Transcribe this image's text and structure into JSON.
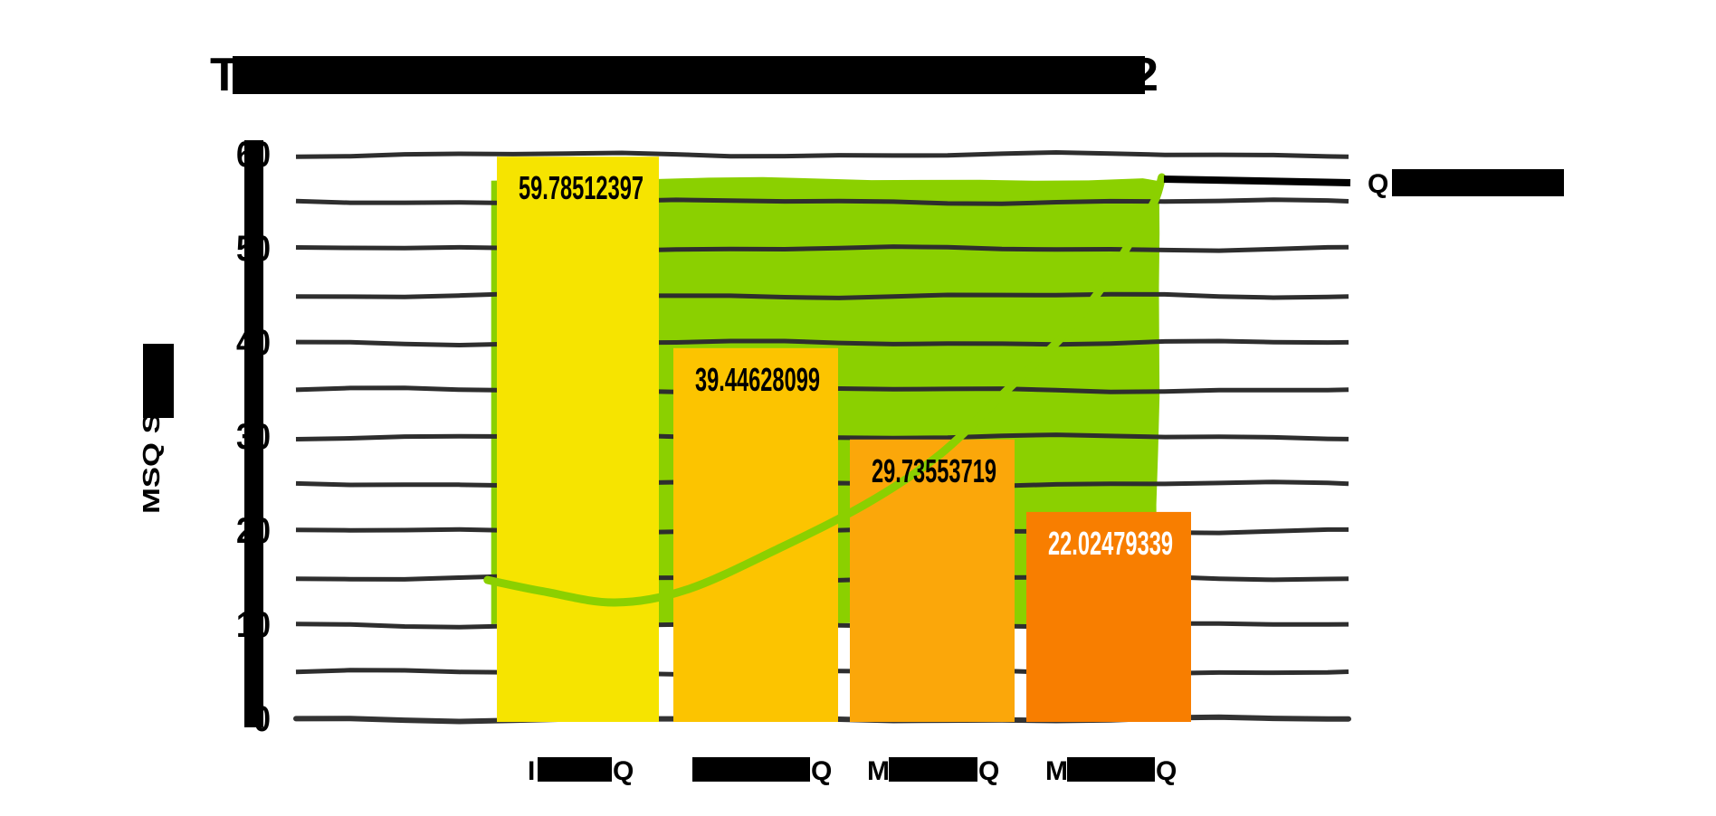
{
  "title": {
    "visible_prefix": "T",
    "visible_suffix": "2",
    "redacted": true
  },
  "y_axis": {
    "title_visible": "MSQ Score",
    "title_redacted": true,
    "tick_labels": [
      "60",
      "50",
      "40",
      "30",
      "20",
      "10",
      "0"
    ]
  },
  "x_axis": {
    "redacted": true,
    "categories": [
      {
        "visible_prefix": "I",
        "visible_suffix": "Q"
      },
      {
        "visible_prefix": "",
        "visible_suffix": "Q"
      },
      {
        "visible_prefix": "M",
        "visible_suffix": "Q"
      },
      {
        "visible_prefix": "M",
        "visible_suffix": "Q"
      }
    ]
  },
  "legend": {
    "visible_prefix": "Q",
    "redacted": true,
    "marker_color": "#000000"
  },
  "chart_data": {
    "type": "bar",
    "overlays": [
      "area",
      "line"
    ],
    "categories": [
      "I█Q",
      "█Q",
      "M█Q",
      "M█Q"
    ],
    "values": [
      59.78512397,
      39.44628099,
      29.73553719,
      22.02479339
    ],
    "value_labels": [
      "59.78512397",
      "39.44628099",
      "29.73553719",
      "22.02479339"
    ],
    "value_label_colors": [
      "#000000",
      "#000000",
      "#000000",
      "#ffffff"
    ],
    "bar_colors": [
      "#F6E400",
      "#FCC400",
      "#FBA70A",
      "#F87E00"
    ],
    "ylim": [
      0,
      60
    ],
    "grid_step": 5,
    "grid_on": true,
    "ylabel": "MSQ Score",
    "gridline_color": "#2e2e2e",
    "axis_color": "#333333",
    "redaction_color": "#000000",
    "area_series": {
      "color": "#8BD000",
      "x_span_idx": [
        -0.49,
        3.28
      ],
      "y_span": [
        10.1,
        57.4
      ]
    },
    "line_series": {
      "color": "#8BD000",
      "points_idx_value": [
        [
          -0.51,
          14.8
        ],
        [
          -0.2,
          13.6
        ],
        [
          0.21,
          12.4
        ],
        [
          0.62,
          13.8
        ],
        [
          1.13,
          18.1
        ],
        [
          1.64,
          23.0
        ],
        [
          2.05,
          28.2
        ],
        [
          2.41,
          34.7
        ],
        [
          2.74,
          40.7
        ],
        [
          2.97,
          46.1
        ],
        [
          3.14,
          51.3
        ],
        [
          3.26,
          55.1
        ],
        [
          3.3,
          57.6
        ]
      ]
    }
  }
}
